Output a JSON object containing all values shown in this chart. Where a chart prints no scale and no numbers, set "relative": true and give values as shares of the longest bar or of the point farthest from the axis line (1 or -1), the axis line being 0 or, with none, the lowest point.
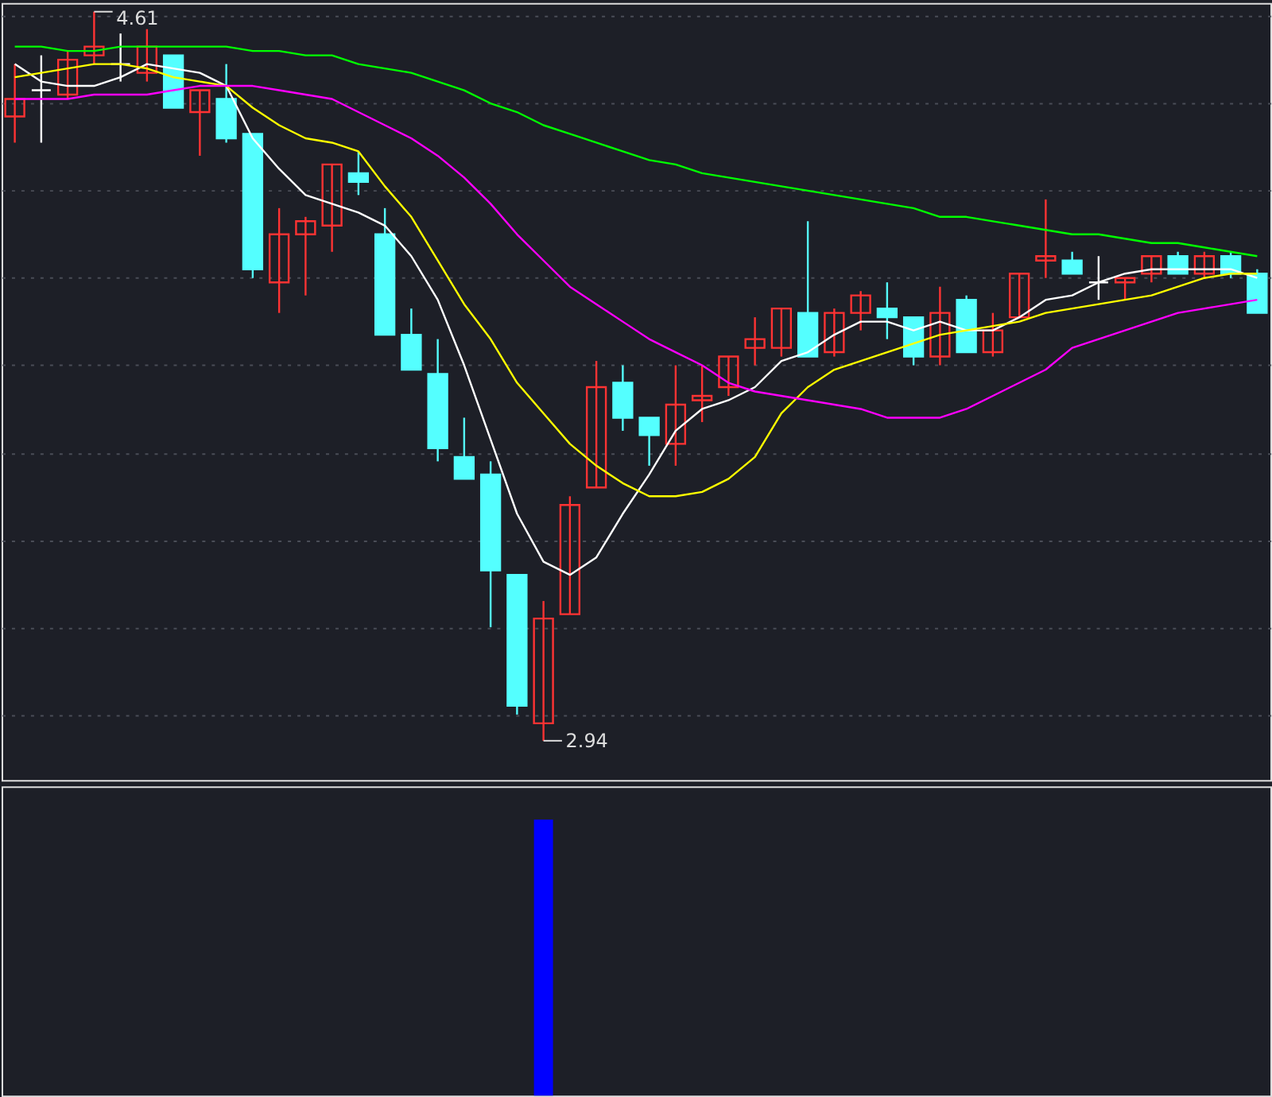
{
  "chart_data": [
    {
      "type": "candlestick",
      "categories": [
        null,
        null,
        null,
        null,
        null,
        null,
        null,
        null,
        null,
        null,
        null,
        null,
        null,
        null,
        null,
        null,
        null,
        null,
        null,
        null,
        null,
        null,
        null,
        null,
        null,
        null,
        null,
        null,
        null,
        null,
        null,
        null,
        null,
        null,
        null,
        null,
        null,
        null,
        null,
        null,
        null,
        null,
        null,
        null,
        null,
        null,
        null,
        null
      ],
      "ohlc": [
        [
          4.37,
          4.49,
          4.31,
          4.41
        ],
        [
          4.43,
          4.51,
          4.31,
          4.43
        ],
        [
          4.42,
          4.52,
          4.41,
          4.5
        ],
        [
          4.51,
          4.61,
          4.49,
          4.53
        ],
        [
          4.49,
          4.56,
          4.45,
          4.49
        ],
        [
          4.47,
          4.57,
          4.45,
          4.53
        ],
        [
          4.51,
          4.51,
          4.39,
          4.39
        ],
        [
          4.38,
          4.43,
          4.28,
          4.43
        ],
        [
          4.41,
          4.49,
          4.31,
          4.32
        ],
        [
          4.33,
          4.33,
          4.0,
          4.02
        ],
        [
          3.99,
          4.16,
          3.92,
          4.1
        ],
        [
          4.1,
          4.14,
          3.96,
          4.13
        ],
        [
          4.12,
          4.26,
          4.06,
          4.26
        ],
        [
          4.24,
          4.29,
          4.19,
          4.22
        ],
        [
          4.1,
          4.16,
          3.87,
          3.87
        ],
        [
          3.87,
          3.93,
          3.79,
          3.79
        ],
        [
          3.78,
          3.86,
          3.58,
          3.61
        ],
        [
          3.59,
          3.68,
          3.54,
          3.54
        ],
        [
          3.55,
          3.58,
          3.2,
          3.33
        ],
        [
          3.32,
          3.32,
          3.0,
          3.02
        ],
        [
          2.98,
          3.26,
          2.94,
          3.22
        ],
        [
          3.23,
          3.5,
          3.23,
          3.48
        ],
        [
          3.52,
          3.81,
          3.52,
          3.75
        ],
        [
          3.76,
          3.8,
          3.65,
          3.68
        ],
        [
          3.68,
          3.68,
          3.57,
          3.64
        ],
        [
          3.62,
          3.8,
          3.57,
          3.71
        ],
        [
          3.72,
          3.8,
          3.67,
          3.73
        ],
        [
          3.75,
          3.82,
          3.73,
          3.82
        ],
        [
          3.84,
          3.91,
          3.8,
          3.86
        ],
        [
          3.84,
          3.93,
          3.82,
          3.93
        ],
        [
          3.92,
          4.13,
          3.82,
          3.82
        ],
        [
          3.83,
          3.93,
          3.82,
          3.92
        ],
        [
          3.92,
          3.97,
          3.88,
          3.96
        ],
        [
          3.93,
          3.99,
          3.86,
          3.91
        ],
        [
          3.91,
          3.91,
          3.8,
          3.82
        ],
        [
          3.82,
          3.98,
          3.8,
          3.92
        ],
        [
          3.95,
          3.96,
          3.83,
          3.83
        ],
        [
          3.83,
          3.92,
          3.82,
          3.88
        ],
        [
          3.91,
          4.01,
          3.91,
          4.01
        ],
        [
          4.04,
          4.18,
          4.0,
          4.05
        ],
        [
          4.04,
          4.06,
          4.01,
          4.01
        ],
        [
          3.99,
          4.05,
          3.95,
          3.99
        ],
        [
          3.99,
          4.0,
          3.95,
          4.0
        ],
        [
          4.01,
          4.05,
          3.99,
          4.05
        ],
        [
          4.05,
          4.06,
          4.01,
          4.01
        ],
        [
          4.01,
          4.06,
          4.0,
          4.05
        ],
        [
          4.05,
          4.06,
          4.0,
          4.01
        ],
        [
          4.01,
          4.02,
          3.92,
          3.92
        ]
      ],
      "colors": [
        "#ff3333",
        "#ffffff",
        "#ff3333",
        "#ff3333",
        "#ffffff",
        "#ff3333",
        "#54ffff",
        "#ff3333",
        "#54ffff",
        "#54ffff",
        "#ff3333",
        "#ff3333",
        "#ff3333",
        "#54ffff",
        "#54ffff",
        "#54ffff",
        "#54ffff",
        "#54ffff",
        "#54ffff",
        "#54ffff",
        "#ff3333",
        "#ff3333",
        "#ff3333",
        "#54ffff",
        "#54ffff",
        "#ff3333",
        "#ff3333",
        "#ff3333",
        "#ff3333",
        "#ff3333",
        "#54ffff",
        "#ff3333",
        "#ff3333",
        "#54ffff",
        "#54ffff",
        "#ff3333",
        "#54ffff",
        "#ff3333",
        "#ff3333",
        "#ff3333",
        "#54ffff",
        "#ffffff",
        "#ff3333",
        "#ff3333",
        "#54ffff",
        "#ff3333",
        "#54ffff",
        "#54ffff"
      ],
      "series": [
        {
          "type": "line",
          "color": "#ffffff",
          "values": [
            4.49,
            4.45,
            4.44,
            4.44,
            4.46,
            4.49,
            4.48,
            4.47,
            4.44,
            4.32,
            4.25,
            4.19,
            4.17,
            4.15,
            4.12,
            4.05,
            3.95,
            3.8,
            3.63,
            3.46,
            3.35,
            3.32,
            3.36,
            3.46,
            3.55,
            3.65,
            3.7,
            3.72,
            3.75,
            3.81,
            3.83,
            3.87,
            3.9,
            3.9,
            3.88,
            3.9,
            3.88,
            3.88,
            3.91,
            3.95,
            3.96,
            3.99,
            4.01,
            4.02,
            4.02,
            4.02,
            4.02,
            4.0
          ]
        },
        {
          "type": "line",
          "color": "#ffff00",
          "values": [
            4.46,
            4.47,
            4.48,
            4.49,
            4.49,
            4.48,
            4.46,
            4.45,
            4.44,
            4.39,
            4.35,
            4.32,
            4.31,
            4.29,
            4.21,
            4.14,
            4.04,
            3.94,
            3.86,
            3.76,
            3.69,
            3.62,
            3.57,
            3.53,
            3.5,
            3.5,
            3.51,
            3.54,
            3.59,
            3.69,
            3.75,
            3.79,
            3.81,
            3.83,
            3.85,
            3.87,
            3.88,
            3.89,
            3.9,
            3.92,
            3.93,
            3.94,
            3.95,
            3.96,
            3.98,
            4.0,
            4.01,
            4.01
          ]
        },
        {
          "type": "line",
          "color": "#ff00ff",
          "values": [
            4.41,
            4.41,
            4.41,
            4.42,
            4.42,
            4.42,
            4.43,
            4.44,
            4.44,
            4.44,
            4.43,
            4.42,
            4.41,
            4.38,
            4.35,
            4.32,
            4.28,
            4.23,
            4.17,
            4.1,
            4.04,
            3.98,
            3.94,
            3.9,
            3.86,
            3.83,
            3.8,
            3.76,
            3.74,
            3.73,
            3.72,
            3.71,
            3.7,
            3.68,
            3.68,
            3.68,
            3.7,
            3.73,
            3.76,
            3.79,
            3.84,
            3.86,
            3.88,
            3.9,
            3.92,
            3.93,
            3.94,
            3.95
          ]
        },
        {
          "type": "line",
          "color": "#00ff00",
          "values": [
            4.53,
            4.53,
            4.52,
            4.52,
            4.53,
            4.53,
            4.53,
            4.53,
            4.53,
            4.52,
            4.52,
            4.51,
            4.51,
            4.49,
            4.48,
            4.47,
            4.45,
            4.43,
            4.4,
            4.38,
            4.35,
            4.33,
            4.31,
            4.29,
            4.27,
            4.26,
            4.24,
            4.23,
            4.22,
            4.21,
            4.2,
            4.19,
            4.18,
            4.17,
            4.16,
            4.14,
            4.14,
            4.13,
            4.12,
            4.11,
            4.1,
            4.1,
            4.09,
            4.08,
            4.08,
            4.07,
            4.06,
            4.05
          ]
        }
      ],
      "ylim": [
        2.85,
        4.63
      ],
      "yticks": [
        {
          "value": 3.0,
          "label": null
        },
        {
          "value": 3.2,
          "label": null
        },
        {
          "value": 3.4,
          "label": null
        },
        {
          "value": 3.6,
          "label": null
        },
        {
          "value": 3.8,
          "label": null
        },
        {
          "value": 4.0,
          "label": null
        },
        {
          "value": 4.2,
          "label": null
        },
        {
          "value": 4.4,
          "label": null
        },
        {
          "value": 4.6,
          "label": null
        }
      ],
      "grid": "y",
      "tick_labels": false,
      "annotations": [
        "4.61",
        "2.94"
      ]
    },
    {
      "type": "bar",
      "categories": [
        null,
        null,
        null,
        null,
        null,
        null,
        null,
        null,
        null,
        null,
        null,
        null,
        null,
        null,
        null,
        null,
        null,
        null,
        null,
        null,
        null,
        null,
        null,
        null,
        null,
        null,
        null,
        null,
        null,
        null,
        null,
        null,
        null,
        null,
        null,
        null,
        null,
        null,
        null,
        null,
        null,
        null,
        null,
        null,
        null,
        null,
        null,
        null
      ],
      "values": [
        null,
        null,
        null,
        null,
        null,
        null,
        null,
        null,
        null,
        null,
        null,
        null,
        null,
        null,
        null,
        null,
        null,
        null,
        null,
        null,
        1,
        null,
        null,
        null,
        null,
        null,
        null,
        null,
        null,
        null,
        null,
        null,
        null,
        null,
        null,
        null,
        null,
        null,
        null,
        null,
        null,
        null,
        null,
        null,
        null,
        null,
        null,
        null
      ],
      "color": "#0000ff",
      "relative": true,
      "tick_labels": false
    }
  ]
}
